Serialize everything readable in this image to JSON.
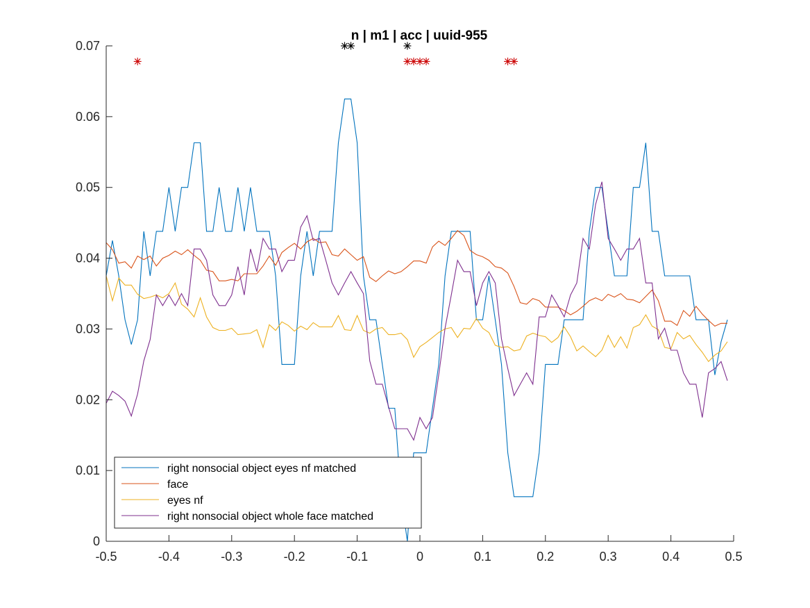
{
  "chart_data": {
    "type": "line",
    "title": "n | m1 | acc | uuid-955",
    "xlabel": "",
    "ylabel": "",
    "xlim": [
      -0.5,
      0.5
    ],
    "ylim": [
      0,
      0.07
    ],
    "xticks": [
      -0.5,
      -0.4,
      -0.3,
      -0.2,
      -0.1,
      0,
      0.1,
      0.2,
      0.3,
      0.4,
      0.5
    ],
    "xtick_labels": [
      "-0.5",
      "-0.4",
      "-0.3",
      "-0.2",
      "-0.1",
      "0",
      "0.1",
      "0.2",
      "0.3",
      "0.4",
      "0.5"
    ],
    "yticks": [
      0,
      0.01,
      0.02,
      0.03,
      0.04,
      0.05,
      0.06,
      0.07
    ],
    "ytick_labels": [
      "0",
      "0.01",
      "0.02",
      "0.03",
      "0.04",
      "0.05",
      "0.06",
      "0.07"
    ],
    "grid": false,
    "legend_position": "bottom-left",
    "x": [
      -0.5,
      -0.49,
      -0.48,
      -0.47,
      -0.46,
      -0.45,
      -0.44,
      -0.43,
      -0.42,
      -0.41,
      -0.4,
      -0.39,
      -0.38,
      -0.37,
      -0.36,
      -0.35,
      -0.34,
      -0.33,
      -0.32,
      -0.31,
      -0.3,
      -0.29,
      -0.28,
      -0.27,
      -0.26,
      -0.25,
      -0.24,
      -0.23,
      -0.22,
      -0.21,
      -0.2,
      -0.19,
      -0.18,
      -0.17,
      -0.16,
      -0.15,
      -0.14,
      -0.13,
      -0.12,
      -0.11,
      -0.1,
      -0.09,
      -0.08,
      -0.07,
      -0.06,
      -0.05,
      -0.04,
      -0.03,
      -0.02,
      -0.01,
      0,
      0.01,
      0.02,
      0.03,
      0.04,
      0.05,
      0.06,
      0.07,
      0.08,
      0.09,
      0.1,
      0.11,
      0.12,
      0.13,
      0.14,
      0.15,
      0.16,
      0.17,
      0.18,
      0.19,
      0.2,
      0.21,
      0.22,
      0.23,
      0.24,
      0.25,
      0.26,
      0.27,
      0.28,
      0.29,
      0.3,
      0.31,
      0.32,
      0.33,
      0.34,
      0.35,
      0.36,
      0.37,
      0.38,
      0.39,
      0.4,
      0.41,
      0.42,
      0.43,
      0.44,
      0.45,
      0.46,
      0.47,
      0.48,
      0.49
    ],
    "series": [
      {
        "name": "right nonsocial object eyes nf matched",
        "color": "#0072BD",
        "values": [
          0.0375,
          0.0425,
          0.0375,
          0.0313,
          0.0278,
          0.0313,
          0.0438,
          0.0375,
          0.0438,
          0.0438,
          0.05,
          0.0438,
          0.05,
          0.05,
          0.0563,
          0.0563,
          0.0438,
          0.0438,
          0.05,
          0.0438,
          0.0438,
          0.05,
          0.0438,
          0.05,
          0.0438,
          0.0438,
          0.0438,
          0.0375,
          0.025,
          0.025,
          0.025,
          0.0375,
          0.0438,
          0.0375,
          0.0438,
          0.0438,
          0.0438,
          0.0563,
          0.0625,
          0.0625,
          0.0563,
          0.0375,
          0.0313,
          0.0313,
          0.025,
          0.0188,
          0.0188,
          0.0063,
          0.0,
          0.0125,
          0.0125,
          0.0125,
          0.0188,
          0.025,
          0.0375,
          0.0438,
          0.0438,
          0.0438,
          0.0438,
          0.0313,
          0.0313,
          0.0375,
          0.0313,
          0.025,
          0.0125,
          0.0063,
          0.0063,
          0.0063,
          0.0063,
          0.0125,
          0.025,
          0.025,
          0.025,
          0.0313,
          0.0313,
          0.0313,
          0.0313,
          0.0438,
          0.05,
          0.05,
          0.0438,
          0.0375,
          0.0375,
          0.0375,
          0.05,
          0.05,
          0.0563,
          0.0438,
          0.0438,
          0.0375,
          0.0375,
          0.0375,
          0.0375,
          0.0375,
          0.0313,
          0.0313,
          0.0313,
          0.0235,
          0.0282,
          0.0313
        ]
      },
      {
        "name": "face",
        "color": "#D95319",
        "values": [
          0.0422,
          0.0412,
          0.0393,
          0.0395,
          0.0386,
          0.0403,
          0.0398,
          0.0403,
          0.0389,
          0.04,
          0.0404,
          0.041,
          0.0405,
          0.0412,
          0.0404,
          0.0397,
          0.0383,
          0.0381,
          0.0368,
          0.0368,
          0.037,
          0.0368,
          0.0378,
          0.0378,
          0.0378,
          0.0389,
          0.0403,
          0.039,
          0.0408,
          0.0415,
          0.0421,
          0.0413,
          0.0423,
          0.0428,
          0.0422,
          0.0423,
          0.0405,
          0.0403,
          0.0413,
          0.0405,
          0.0397,
          0.0402,
          0.0373,
          0.0367,
          0.0375,
          0.0382,
          0.0378,
          0.0381,
          0.0388,
          0.0396,
          0.0396,
          0.0393,
          0.0416,
          0.0424,
          0.0418,
          0.0428,
          0.0439,
          0.0432,
          0.0411,
          0.0405,
          0.0402,
          0.0397,
          0.0388,
          0.0386,
          0.0379,
          0.036,
          0.0337,
          0.0335,
          0.0343,
          0.034,
          0.0331,
          0.0331,
          0.0331,
          0.0326,
          0.032,
          0.0325,
          0.0332,
          0.034,
          0.0344,
          0.034,
          0.0349,
          0.0345,
          0.035,
          0.0342,
          0.0341,
          0.0337,
          0.0346,
          0.0355,
          0.034,
          0.0311,
          0.0311,
          0.0305,
          0.0326,
          0.0318,
          0.0332,
          0.0321,
          0.0312,
          0.0304,
          0.0308,
          0.0308
        ]
      },
      {
        "name": "eyes nf",
        "color": "#EDB120",
        "values": [
          0.0375,
          0.034,
          0.0372,
          0.0362,
          0.0362,
          0.0349,
          0.0343,
          0.0345,
          0.0348,
          0.0344,
          0.035,
          0.0365,
          0.0335,
          0.0328,
          0.0317,
          0.0344,
          0.0317,
          0.0302,
          0.0298,
          0.0298,
          0.0301,
          0.0292,
          0.0293,
          0.0294,
          0.0299,
          0.0274,
          0.0306,
          0.0298,
          0.031,
          0.0305,
          0.0297,
          0.0304,
          0.0299,
          0.0309,
          0.0303,
          0.0303,
          0.0303,
          0.0319,
          0.0299,
          0.0298,
          0.0319,
          0.0298,
          0.0294,
          0.03,
          0.0302,
          0.0292,
          0.0292,
          0.0294,
          0.0285,
          0.026,
          0.0275,
          0.0281,
          0.0288,
          0.0295,
          0.03,
          0.0302,
          0.0288,
          0.0301,
          0.03,
          0.0315,
          0.0301,
          0.0295,
          0.0277,
          0.0274,
          0.0275,
          0.0269,
          0.0271,
          0.029,
          0.0294,
          0.0291,
          0.0289,
          0.0281,
          0.0288,
          0.0303,
          0.0289,
          0.0269,
          0.0276,
          0.0268,
          0.0261,
          0.027,
          0.0291,
          0.0274,
          0.0289,
          0.0273,
          0.0302,
          0.0306,
          0.032,
          0.0304,
          0.0299,
          0.0274,
          0.0272,
          0.0295,
          0.0286,
          0.0291,
          0.0278,
          0.0267,
          0.0254,
          0.0263,
          0.0269,
          0.0282
        ]
      },
      {
        "name": "right nonsocial object whole face matched",
        "color": "#7E2F8E",
        "values": [
          0.0195,
          0.0212,
          0.0206,
          0.0198,
          0.0177,
          0.0208,
          0.0255,
          0.0285,
          0.0348,
          0.0333,
          0.0348,
          0.0333,
          0.035,
          0.0333,
          0.0413,
          0.0413,
          0.0397,
          0.0348,
          0.0333,
          0.0333,
          0.0348,
          0.0388,
          0.0348,
          0.0413,
          0.0381,
          0.0428,
          0.0413,
          0.0413,
          0.0381,
          0.0397,
          0.0397,
          0.0444,
          0.046,
          0.0425,
          0.0428,
          0.0397,
          0.0365,
          0.0348,
          0.0365,
          0.0381,
          0.0365,
          0.035,
          0.0255,
          0.0222,
          0.0222,
          0.019,
          0.0159,
          0.0159,
          0.0159,
          0.0143,
          0.0175,
          0.0159,
          0.0175,
          0.0235,
          0.0301,
          0.0348,
          0.0397,
          0.0381,
          0.0381,
          0.0333,
          0.0365,
          0.0381,
          0.0365,
          0.0286,
          0.0244,
          0.0206,
          0.0222,
          0.0238,
          0.0222,
          0.0317,
          0.0317,
          0.0348,
          0.0333,
          0.0317,
          0.0348,
          0.0365,
          0.0428,
          0.0413,
          0.0476,
          0.0508,
          0.0428,
          0.0413,
          0.0397,
          0.0413,
          0.0413,
          0.0428,
          0.0365,
          0.0365,
          0.0286,
          0.0301,
          0.027,
          0.027,
          0.0238,
          0.0222,
          0.0222,
          0.0175,
          0.0238,
          0.0244,
          0.0254,
          0.0227
        ]
      }
    ],
    "markers": [
      {
        "color": "#000000",
        "y": 0.07,
        "x": [
          -0.12,
          -0.11,
          -0.02
        ]
      },
      {
        "color": "#CC0000",
        "y": 0.0678,
        "x": [
          -0.45,
          -0.02,
          -0.01,
          0.0,
          0.01,
          0.14,
          0.15
        ]
      }
    ]
  }
}
